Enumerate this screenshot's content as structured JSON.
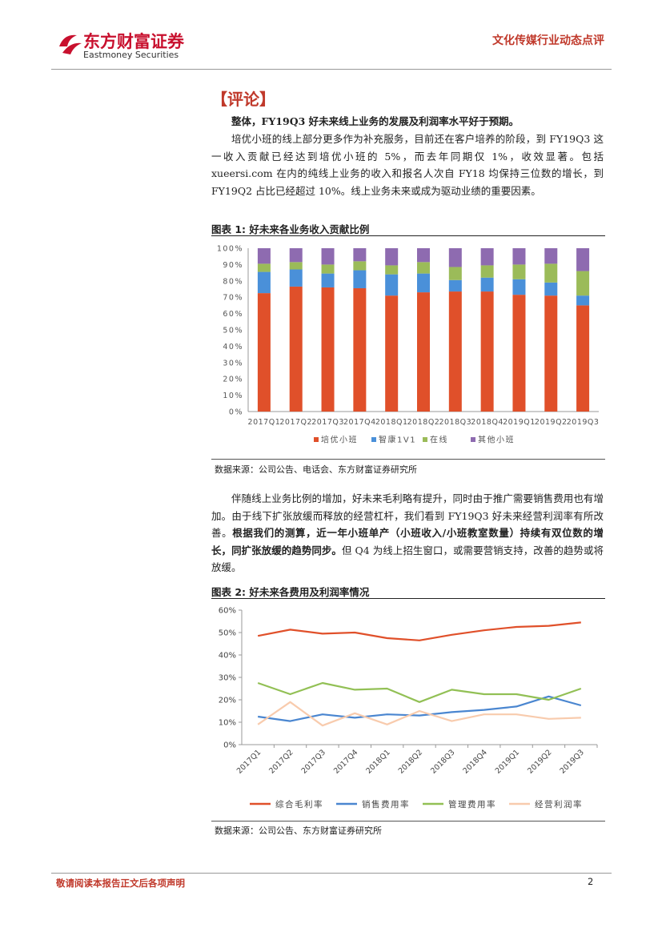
{
  "header": {
    "logo_cn": "东方财富证券",
    "logo_en": "Eastmoney Securities",
    "category": "文化传媒行业动态点评",
    "brand_color": "#c8102e"
  },
  "section_heading": "【评论】",
  "paragraphs": {
    "lead": "整体，FY19Q3 好未来线上业务的发展及利润率水平好于预期。",
    "p1": "培优小班的线上部分更多作为补充服务，目前还在客户培养的阶段，到 FY19Q3 这一收入贡献已经达到培优小班的 5%，而去年同期仅 1%，收效显著。包括 xueersi.com 在内的纯线上业务的收入和报名人次自 FY18 均保持三位数的增长，到 FY19Q2 占比已经超过 10%。线上业务未来或成为驱动业绩的重要因素。",
    "p2_a": "伴随线上业务比例的增加，好未来毛利略有提升，同时由于推广需要销售费用也有增加。由于线下扩张放缓而释放的经营杠杆，我们看到 FY19Q3 好未来经营利润率有所改善。",
    "p2_b": "根据我们的测算，近一年小班单产（小班收入/小班教室数量）持续有双位数的增长，同扩张放缓的趋势同步。",
    "p2_c": "但 Q4 为线上招生窗口，或需要营销支持，改善的趋势或将放缓。"
  },
  "figure1": {
    "title": "图表 1:  好未来各业务收入贡献比例",
    "source": "数据来源：公司公告、电话会、东方财富证券研究所"
  },
  "figure2": {
    "title": "图表 2:  好未来各费用及利润率情况",
    "source": "数据来源：公司公告、东方财富证券研究所"
  },
  "chart_data": [
    {
      "type": "bar",
      "stacked": true,
      "categories": [
        "2017Q1",
        "2017Q2",
        "2017Q3",
        "2017Q4",
        "2018Q1",
        "2018Q2",
        "2018Q3",
        "2018Q4",
        "2019Q1",
        "2019Q2",
        "2019Q3"
      ],
      "series": [
        {
          "name": "培优小班",
          "color": "#e0502a",
          "values": [
            72.5,
            76.5,
            76,
            75.5,
            71,
            73,
            73.5,
            73.5,
            71.5,
            71,
            65
          ]
        },
        {
          "name": "智康1V1",
          "color": "#4a90d9",
          "values": [
            13,
            10.5,
            8.5,
            11,
            13,
            11.5,
            7,
            8.5,
            9.5,
            8,
            6
          ]
        },
        {
          "name": "在线",
          "color": "#9bbb59",
          "values": [
            5,
            4.5,
            5.5,
            5.5,
            5.5,
            7,
            8,
            7.5,
            9,
            11.5,
            15
          ]
        },
        {
          "name": "其他小班",
          "color": "#8e6bb0",
          "values": [
            9.5,
            8.5,
            10,
            8,
            10.5,
            8.5,
            11.5,
            10.5,
            10,
            9.5,
            14
          ]
        }
      ],
      "yticks": [
        "0%",
        "10%",
        "20%",
        "30%",
        "40%",
        "50%",
        "60%",
        "70%",
        "80%",
        "90%",
        "100%"
      ],
      "ylim": [
        0,
        100
      ],
      "legend": "bottom",
      "grid": false
    },
    {
      "type": "line",
      "categories": [
        "2017Q1",
        "2017Q2",
        "2017Q3",
        "2017Q4",
        "2018Q1",
        "2018Q2",
        "2018Q3",
        "2018Q4",
        "2019Q1",
        "2019Q2",
        "2019Q3"
      ],
      "series": [
        {
          "name": "综合毛利率",
          "color": "#e0502a",
          "values": [
            48.5,
            51.3,
            49.5,
            50.0,
            47.5,
            46.5,
            49.0,
            51.0,
            52.5,
            53.0,
            54.5
          ]
        },
        {
          "name": "销售费用率",
          "color": "#4a86d0",
          "values": [
            12.5,
            10.5,
            13.5,
            12.0,
            13.5,
            13.0,
            14.5,
            15.5,
            17.0,
            21.5,
            17.5
          ]
        },
        {
          "name": "管理费用率",
          "color": "#92c055",
          "values": [
            27.5,
            22.5,
            27.5,
            24.5,
            25.0,
            19.0,
            24.5,
            22.5,
            22.5,
            20.0,
            25.0
          ]
        },
        {
          "name": "经营利润率",
          "color": "#f8cbad",
          "values": [
            9.0,
            19.0,
            8.5,
            14.0,
            9.0,
            15.0,
            10.5,
            13.5,
            13.5,
            11.5,
            12.0
          ]
        }
      ],
      "yticks": [
        "0%",
        "10%",
        "20%",
        "30%",
        "40%",
        "50%",
        "60%"
      ],
      "ylim": [
        0,
        60
      ],
      "legend": "bottom",
      "grid": false
    }
  ],
  "footer": {
    "note": "敬请阅读本报告正文后各项声明",
    "page": "2"
  }
}
